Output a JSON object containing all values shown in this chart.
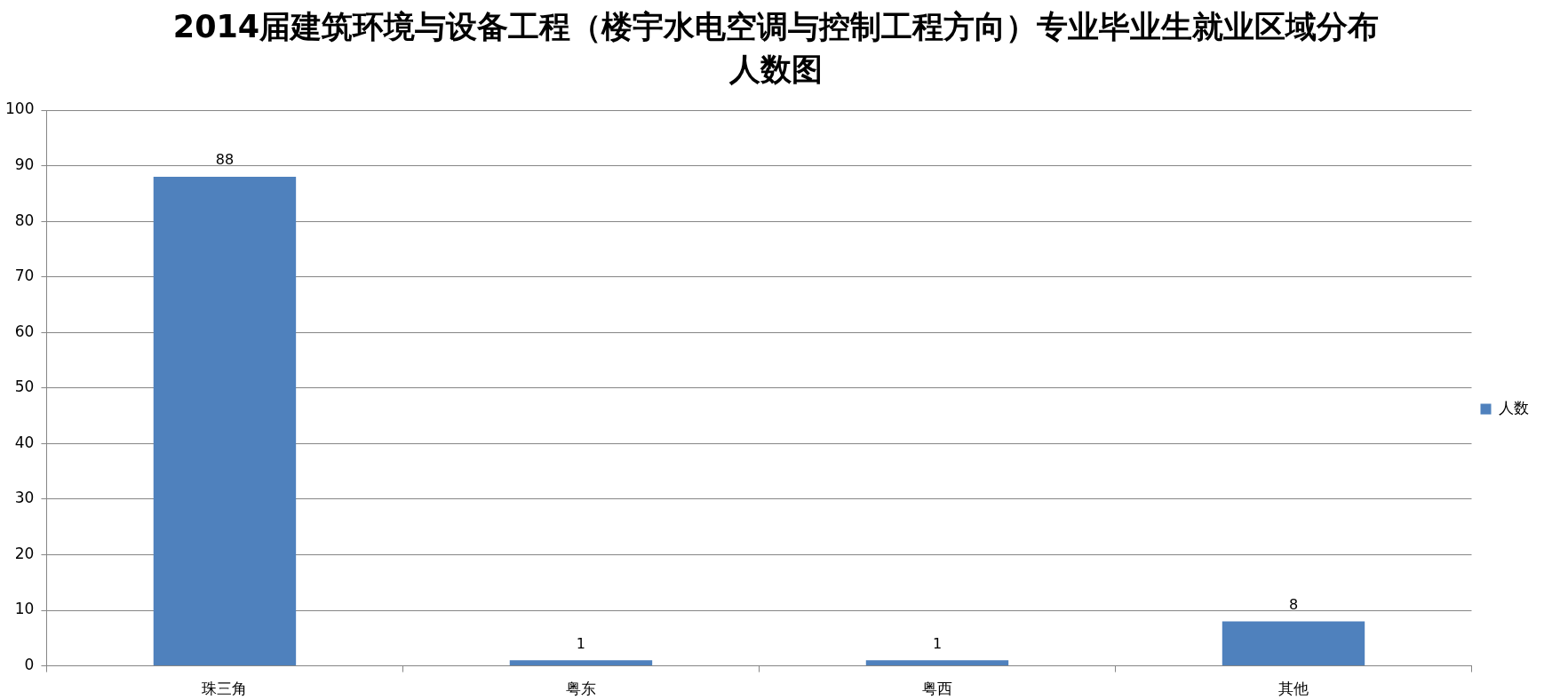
{
  "chart_data": {
    "type": "bar",
    "title": "2014届建筑环境与设备工程（楼宇水电空调与控制工程方向）专业毕业生就业区域分布人数图",
    "categories": [
      "珠三角",
      "粤东",
      "粤西",
      "其他"
    ],
    "series": [
      {
        "name": "人数",
        "color": "#4f81bd",
        "values": [
          88,
          1,
          1,
          8
        ]
      }
    ],
    "ylim": [
      0,
      100
    ],
    "yticks": [
      0,
      10,
      20,
      30,
      40,
      50,
      60,
      70,
      80,
      90,
      100
    ],
    "grid": "y",
    "legend": "right",
    "data_labels": true
  }
}
